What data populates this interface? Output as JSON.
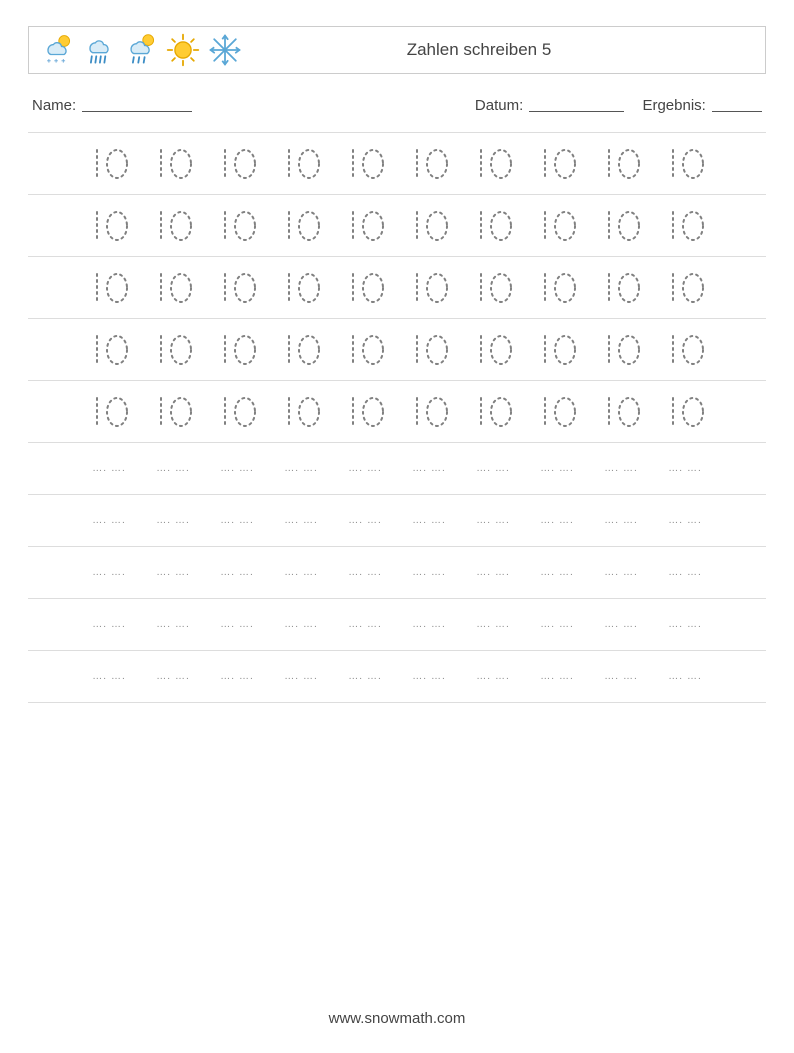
{
  "header": {
    "title": "Zahlen schreiben 5",
    "icon_names": [
      "cloud-sun-snow-icon",
      "cloud-rain-icon",
      "cloud-sun-rain-icon",
      "sun-icon",
      "snowflake-icon"
    ]
  },
  "meta": {
    "name_label": "Name:",
    "date_label": "Datum:",
    "result_label": "Ergebnis:"
  },
  "worksheet": {
    "trace_value": "10",
    "trace_color": "#808080",
    "large_rows": 5,
    "small_rows": 5,
    "columns": 10,
    "row_border_color": "#dddddd",
    "dot_pattern": "…. …."
  },
  "colors": {
    "cloud_fill": "#d9ecf7",
    "cloud_stroke": "#5aa7d6",
    "sun_fill": "#ffcc33",
    "sun_stroke": "#e6a800",
    "rain": "#3c8dc5",
    "snow": "#6aa8d8",
    "snowflake": "#5aa7d6"
  },
  "footer": {
    "text": "www.snowmath.com"
  }
}
